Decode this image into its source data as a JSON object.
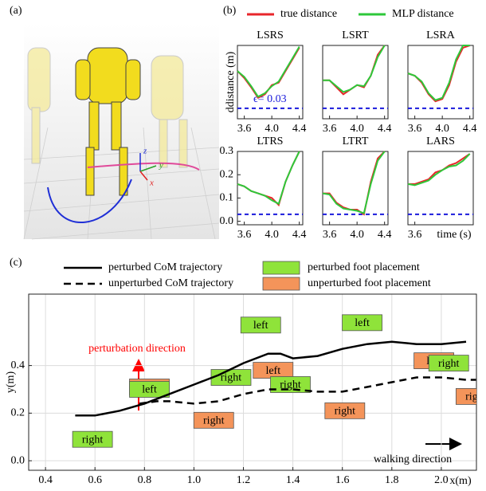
{
  "panel_labels": [
    "(a)",
    "(b)",
    "(c)"
  ],
  "panel_a": {
    "axes": [
      "x",
      "y",
      "z"
    ]
  },
  "legend": [
    {
      "name": "true distance",
      "color": "#e8262b"
    },
    {
      "name": "MLP distance",
      "color": "#2ec83a"
    }
  ],
  "chart_data": [
    {
      "type": "line",
      "title": "LSRS",
      "ylabel": "ddistance (m)",
      "annotation": "ϵ= 0.03",
      "threshold": 0.03,
      "threshold_color": "#1a1adb",
      "x": [
        3.5,
        3.6,
        3.7,
        3.8,
        3.9,
        4.0,
        4.1,
        4.2,
        4.3,
        4.4
      ],
      "series": [
        {
          "values": [
            0.19,
            0.16,
            0.12,
            0.075,
            0.09,
            0.13,
            0.14,
            0.19,
            0.24,
            0.29
          ]
        },
        {
          "values": [
            0.19,
            0.165,
            0.125,
            0.08,
            0.095,
            0.125,
            0.145,
            0.195,
            0.245,
            0.295
          ]
        }
      ],
      "xlim": [
        3.5,
        4.45
      ],
      "ylim": [
        -0.015,
        0.3
      ],
      "xticks": [
        3.6,
        {
          "value": 4,
          "label": "4.0"
        },
        4.4
      ]
    },
    {
      "type": "line",
      "title": "LSRT",
      "threshold": 0.03,
      "threshold_color": "#1a1adb",
      "x": [
        3.5,
        3.6,
        3.7,
        3.8,
        3.9,
        4.0,
        4.1,
        4.2,
        4.3,
        4.4
      ],
      "series": [
        {
          "values": [
            0.15,
            0.15,
            0.12,
            0.09,
            0.11,
            0.13,
            0.12,
            0.17,
            0.26,
            0.3
          ]
        },
        {
          "values": [
            0.15,
            0.15,
            0.125,
            0.1,
            0.11,
            0.13,
            0.125,
            0.17,
            0.25,
            0.3
          ]
        }
      ],
      "xlim": [
        3.5,
        4.45
      ],
      "ylim": [
        -0.015,
        0.3
      ],
      "xticks": [
        3.6,
        {
          "value": 4,
          "label": "4.0"
        },
        4.4
      ]
    },
    {
      "type": "line",
      "title": "LSRA",
      "threshold": 0.03,
      "threshold_color": "#1a1adb",
      "x": [
        3.5,
        3.6,
        3.7,
        3.8,
        3.9,
        4.0,
        4.1,
        4.2,
        4.3,
        4.4
      ],
      "series": [
        {
          "values": [
            0.18,
            0.17,
            0.14,
            0.09,
            0.06,
            0.07,
            0.13,
            0.23,
            0.29,
            0.3
          ]
        },
        {
          "values": [
            0.18,
            0.17,
            0.145,
            0.095,
            0.065,
            0.075,
            0.14,
            0.24,
            0.3,
            0.3
          ]
        }
      ],
      "xlim": [
        3.5,
        4.45
      ],
      "ylim": [
        -0.015,
        0.3
      ],
      "xticks": [
        3.6,
        {
          "value": 4,
          "label": "4.0"
        },
        4.4
      ]
    },
    {
      "type": "line",
      "title": "LTRS",
      "threshold": 0.03,
      "threshold_color": "#1a1adb",
      "x": [
        3.5,
        3.6,
        3.7,
        3.8,
        3.9,
        4.0,
        4.1,
        4.2,
        4.3,
        4.4
      ],
      "series": [
        {
          "values": [
            0.16,
            0.15,
            0.13,
            0.12,
            0.11,
            0.1,
            0.07,
            0.17,
            0.24,
            0.3
          ]
        },
        {
          "values": [
            0.16,
            0.15,
            0.13,
            0.12,
            0.11,
            0.09,
            0.075,
            0.17,
            0.24,
            0.3
          ]
        }
      ],
      "xlim": [
        3.5,
        4.45
      ],
      "ylim": [
        -0.015,
        0.3
      ],
      "xticks": [
        3.6,
        {
          "value": 4,
          "label": "4.0"
        },
        4.4
      ],
      "yticks": [
        {
          "value": 0,
          "label": "0.0"
        },
        0.1,
        0.2,
        0.3
      ]
    },
    {
      "type": "line",
      "title": "LTRT",
      "threshold": 0.03,
      "threshold_color": "#1a1adb",
      "x": [
        3.5,
        3.6,
        3.7,
        3.8,
        3.9,
        4.0,
        4.1,
        4.2,
        4.3,
        4.4
      ],
      "series": [
        {
          "values": [
            0.12,
            0.12,
            0.08,
            0.06,
            0.05,
            0.05,
            0.03,
            0.17,
            0.27,
            0.3
          ]
        },
        {
          "values": [
            0.12,
            0.115,
            0.075,
            0.055,
            0.05,
            0.045,
            0.035,
            0.16,
            0.26,
            0.3
          ]
        }
      ],
      "xlim": [
        3.5,
        4.45
      ],
      "ylim": [
        -0.015,
        0.3
      ],
      "xticks": [
        3.6,
        {
          "value": 4,
          "label": "4.0"
        },
        4.4
      ]
    },
    {
      "type": "line",
      "title": "LARS",
      "xlabel": "time (s)",
      "threshold": 0.03,
      "threshold_color": "#1a1adb",
      "x": [
        3.5,
        3.6,
        3.7,
        3.8,
        3.9,
        4.0,
        4.1,
        4.2,
        4.3,
        4.4
      ],
      "series": [
        {
          "values": [
            0.16,
            0.16,
            0.17,
            0.18,
            0.21,
            0.22,
            0.24,
            0.25,
            0.27,
            0.29
          ]
        },
        {
          "values": [
            0.16,
            0.155,
            0.165,
            0.175,
            0.2,
            0.22,
            0.235,
            0.24,
            0.26,
            0.29
          ]
        }
      ],
      "xlim": [
        3.5,
        4.45
      ],
      "ylim": [
        -0.015,
        0.3
      ],
      "xticks": [
        3.6
      ]
    },
    {
      "type": "line",
      "xlabel": "x(m)",
      "ylabel": "y(m)",
      "grid": true,
      "xlim": [
        0.332,
        2.142
      ],
      "ylim": [
        -0.04,
        0.7
      ],
      "xticks": [
        0.4,
        0.6,
        0.8,
        {
          "value": 1,
          "label": "1.0"
        },
        1.2,
        1.4,
        1.6,
        1.8,
        {
          "value": 2,
          "label": "2.0"
        }
      ],
      "yticks": [
        {
          "value": 0,
          "label": "0.0"
        },
        0.2,
        0.4
      ],
      "series": [
        {
          "name": "perturbed CoM trajectory",
          "color": "#000000",
          "dashed": false,
          "x": [
            0.52,
            0.6,
            0.7,
            0.8,
            0.9,
            1.0,
            1.1,
            1.2,
            1.3,
            1.35,
            1.4,
            1.5,
            1.6,
            1.7,
            1.8,
            1.9,
            2.0,
            2.1
          ],
          "values": [
            0.19,
            0.19,
            0.21,
            0.24,
            0.28,
            0.32,
            0.36,
            0.41,
            0.45,
            0.45,
            0.43,
            0.44,
            0.47,
            0.49,
            0.5,
            0.49,
            0.49,
            0.5
          ]
        },
        {
          "name": "unperturbed CoM trajectory",
          "color": "#000000",
          "dashed": true,
          "x": [
            0.78,
            0.85,
            0.9,
            1.0,
            1.1,
            1.2,
            1.3,
            1.4,
            1.5,
            1.6,
            1.7,
            1.8,
            1.9,
            2.0,
            2.1,
            2.14
          ],
          "values": [
            0.24,
            0.25,
            0.25,
            0.24,
            0.25,
            0.28,
            0.3,
            0.3,
            0.29,
            0.29,
            0.31,
            0.33,
            0.35,
            0.35,
            0.34,
            0.34
          ]
        }
      ],
      "steps": [
        {
          "name": "unperturbed foot placement",
          "color": "#f4945a",
          "x": [
            0.82,
            1.08,
            1.32,
            1.61,
            1.97,
            2.14
          ],
          "values": [
            0.31,
            0.17,
            0.38,
            0.21,
            0.42,
            0.27
          ],
          "labels": [
            "left",
            "right",
            "left",
            "right",
            "left",
            "right"
          ]
        },
        {
          "name": "perturbed foot placement",
          "color": "#8fe33a",
          "x": [
            0.59,
            0.82,
            1.15,
            1.27,
            1.39,
            1.68,
            2.03
          ],
          "values": [
            0.09,
            0.3,
            0.35,
            0.57,
            0.32,
            0.58,
            0.41
          ],
          "labels": [
            "right",
            "left",
            "right",
            "left",
            "right",
            "left",
            "right"
          ]
        }
      ],
      "annotations": [
        {
          "text": "perturbation direction",
          "color": "#ff0000"
        },
        {
          "text": "walking direction",
          "color": "#000000"
        }
      ]
    }
  ]
}
